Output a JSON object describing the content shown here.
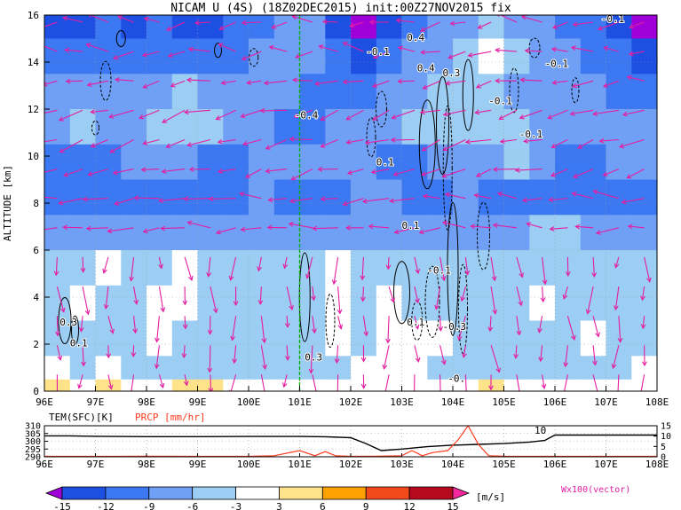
{
  "chart_data": [
    {
      "type": "heatmap",
      "title": "NICAM U (4S) (18Z02DEC2015) init:00Z27NOV2015 fix",
      "ylabel": "ALTITUDE [km]",
      "xlim": [
        96,
        108
      ],
      "ylim": [
        0,
        16
      ],
      "x_ticks": [
        "96E",
        "97E",
        "98E",
        "99E",
        "100E",
        "101E",
        "102E",
        "103E",
        "104E",
        "105E",
        "106E",
        "107E",
        "108E"
      ],
      "y_ticks": [
        "0",
        "2",
        "4",
        "6",
        "8",
        "10",
        "12",
        "14",
        "16"
      ],
      "grid": true,
      "marker_longitude": 101,
      "vector_label": "Wx100(vector)",
      "contour_labels": [
        {
          "text": "-0.1",
          "x": 106.9,
          "y": 15.7
        },
        {
          "text": "-0.1",
          "x": 102.3,
          "y": 14.3
        },
        {
          "text": "0.4",
          "x": 103.1,
          "y": 14.9
        },
        {
          "text": "0.4",
          "x": 103.3,
          "y": 13.6
        },
        {
          "text": "0.3",
          "x": 103.8,
          "y": 13.4
        },
        {
          "text": "-0.1",
          "x": 105.8,
          "y": 13.8
        },
        {
          "text": "-0.1",
          "x": 104.7,
          "y": 12.2
        },
        {
          "text": "-0.4",
          "x": 100.9,
          "y": 11.6
        },
        {
          "text": "-0.1",
          "x": 105.3,
          "y": 10.8
        },
        {
          "text": "0.1",
          "x": 102.5,
          "y": 9.6
        },
        {
          "text": "0.1",
          "x": 103.0,
          "y": 6.9
        },
        {
          "text": "-0.1",
          "x": 103.5,
          "y": 5.0
        },
        {
          "text": "0.1",
          "x": 103.1,
          "y": 2.8
        },
        {
          "text": "-0.3",
          "x": 103.8,
          "y": 2.6
        },
        {
          "text": "0.3",
          "x": 96.3,
          "y": 2.8
        },
        {
          "text": "0.1",
          "x": 96.5,
          "y": 1.9
        },
        {
          "text": "0.3",
          "x": 101.1,
          "y": 1.3
        },
        {
          "text": "-0.",
          "x": 103.9,
          "y": 0.4
        }
      ],
      "bands": [
        {
          "y_top": 16.0,
          "y_bot": 15.0,
          "level": -9,
          "cells": [
            -12,
            -12,
            -9,
            -12,
            -9,
            -12,
            -12,
            -9,
            -9,
            -6,
            -6,
            -12,
            -15,
            -12,
            -9,
            -6,
            -6,
            -3,
            -6,
            -6,
            -9,
            -9,
            -12,
            -15
          ]
        },
        {
          "y_top": 15.0,
          "y_bot": 13.5,
          "level": -9,
          "cells": [
            -9,
            -9,
            -9,
            -9,
            -9,
            -9,
            -9,
            -9,
            -6,
            -6,
            -6,
            -9,
            -12,
            -9,
            -6,
            -6,
            -3,
            3,
            -3,
            -6,
            -6,
            -9,
            -9,
            -12
          ]
        },
        {
          "y_top": 13.5,
          "y_bot": 12.0,
          "level": -6,
          "cells": [
            -6,
            -6,
            -6,
            -6,
            -6,
            -3,
            -6,
            -6,
            -6,
            -6,
            -9,
            -9,
            -9,
            -6,
            -6,
            -3,
            -3,
            -3,
            -6,
            -6,
            -6,
            -6,
            -9,
            -9
          ]
        },
        {
          "y_top": 12.0,
          "y_bot": 10.5,
          "level": -6,
          "cells": [
            -6,
            -3,
            -6,
            -6,
            -3,
            -3,
            -3,
            -6,
            -6,
            -9,
            -9,
            -6,
            -6,
            -6,
            -3,
            -3,
            -3,
            -3,
            -3,
            -6,
            -6,
            -6,
            -6,
            -6
          ]
        },
        {
          "y_top": 10.5,
          "y_bot": 9.0,
          "level": -6,
          "cells": [
            -9,
            -9,
            -9,
            -6,
            -6,
            -6,
            -9,
            -9,
            -6,
            -6,
            -6,
            -6,
            -6,
            -9,
            -9,
            -6,
            -6,
            -6,
            -3,
            -6,
            -9,
            -9,
            -6,
            -6
          ]
        },
        {
          "y_top": 9.0,
          "y_bot": 7.5,
          "level": -9,
          "cells": [
            -9,
            -9,
            -9,
            -9,
            -9,
            -9,
            -9,
            -9,
            -6,
            -9,
            -9,
            -9,
            -6,
            -6,
            -9,
            -9,
            -6,
            -9,
            -9,
            -9,
            -9,
            -9,
            -9,
            -9
          ]
        },
        {
          "y_top": 7.5,
          "y_bot": 6.0,
          "level": -6,
          "cells": [
            -6,
            -6,
            -6,
            -6,
            -6,
            -6,
            -6,
            -6,
            -6,
            -6,
            -6,
            -6,
            -6,
            -6,
            -6,
            -6,
            -6,
            -6,
            -6,
            -3,
            -3,
            -6,
            -6,
            -6
          ]
        },
        {
          "y_top": 6.0,
          "y_bot": 4.5,
          "level": -3,
          "cells": [
            -3,
            -3,
            3,
            -3,
            -3,
            3,
            -3,
            -3,
            -3,
            -3,
            -3,
            3,
            -3,
            -3,
            -3,
            -3,
            -3,
            -3,
            -3,
            -3,
            -3,
            -3,
            -3,
            -3
          ]
        },
        {
          "y_top": 4.5,
          "y_bot": 3.0,
          "level": -3,
          "cells": [
            -3,
            3,
            -3,
            -3,
            3,
            3,
            -3,
            -3,
            -3,
            -3,
            -3,
            3,
            -3,
            3,
            -3,
            -3,
            -3,
            -3,
            -3,
            3,
            -3,
            -3,
            -3,
            -3
          ]
        },
        {
          "y_top": 3.0,
          "y_bot": 1.5,
          "level": -3,
          "cells": [
            -3,
            -3,
            -3,
            -3,
            3,
            -3,
            -3,
            -3,
            -3,
            -3,
            -3,
            3,
            -3,
            3,
            3,
            3,
            -3,
            -3,
            -3,
            -3,
            -3,
            3,
            -3,
            -3
          ]
        },
        {
          "y_top": 1.5,
          "y_bot": 0.5,
          "level": -3,
          "cells": [
            3,
            -3,
            3,
            -3,
            -3,
            -3,
            -3,
            -3,
            -3,
            -3,
            -3,
            -3,
            3,
            3,
            3,
            -3,
            -3,
            -3,
            -3,
            -3,
            -3,
            -3,
            -3,
            3
          ]
        },
        {
          "y_top": 0.5,
          "y_bot": 0.0,
          "level": 3,
          "cells": [
            6,
            3,
            6,
            3,
            3,
            6,
            6,
            3,
            3,
            3,
            3,
            3,
            3,
            3,
            3,
            3,
            3,
            6,
            3,
            3,
            3,
            3,
            3,
            3
          ]
        }
      ]
    },
    {
      "type": "line",
      "label_left": "TEM(SFC)[K]",
      "label_right": "PRCP [mm/hr]",
      "xlim": [
        96,
        108
      ],
      "x_ticks": [
        "96E",
        "97E",
        "98E",
        "99E",
        "100E",
        "101E",
        "102E",
        "103E",
        "104E",
        "105E",
        "106E",
        "107E",
        "108E"
      ],
      "y_left_ticks": [
        "290",
        "295",
        "300",
        "305",
        "310"
      ],
      "y_left_range": [
        290,
        310
      ],
      "y_right_ticks": [
        "0",
        "5",
        "10",
        "15"
      ],
      "y_right_range": [
        0,
        15
      ],
      "series": [
        {
          "name": "TEM(SFC)[K]",
          "color": "#000000",
          "x": [
            96,
            96.5,
            97,
            98,
            99,
            100,
            101,
            101.5,
            102,
            102.3,
            102.6,
            103,
            103.5,
            104,
            104.5,
            105,
            105.5,
            105.8,
            106,
            106.5,
            107,
            108
          ],
          "y": [
            303.5,
            303.5,
            303.2,
            303,
            303,
            303.1,
            303.1,
            302.9,
            302.3,
            298.5,
            294,
            295,
            296.5,
            297.5,
            298,
            298.5,
            299.5,
            300.5,
            304,
            304,
            304,
            304
          ]
        },
        {
          "name": "PRCP [mm/hr]",
          "color": "#ff3b1f",
          "x": [
            96,
            97,
            98,
            99,
            100,
            100.5,
            101,
            101.3,
            101.5,
            101.7,
            102,
            102.5,
            103,
            103.2,
            103.4,
            103.6,
            103.9,
            104.1,
            104.3,
            104.5,
            104.7,
            105,
            106,
            107,
            108
          ],
          "y": [
            0.2,
            0.2,
            0.3,
            0.2,
            0.2,
            0.5,
            3,
            0.5,
            2.5,
            0.5,
            0.2,
            0.3,
            0.5,
            3,
            0.5,
            2,
            3,
            8,
            15,
            6,
            0.5,
            0.3,
            0.2,
            0.2,
            0.2
          ]
        }
      ],
      "annotation": "10"
    },
    {
      "type": "colorbar",
      "unit": "[m/s]",
      "levels": [
        "-15",
        "-12",
        "-9",
        "-6",
        "-3",
        "3",
        "6",
        "9",
        "12",
        "15"
      ],
      "colors": [
        "#a000d8",
        "#1e4fe3",
        "#3c78f2",
        "#6fa0f5",
        "#9ccdf2",
        "#ffffff",
        "#ffe38a",
        "#ffa100",
        "#f24a1a",
        "#b50a1d",
        "#f4289c"
      ]
    }
  ],
  "colors": {
    "vector": "#e41ea2",
    "marker_line": "#00b000",
    "tem": "#000000",
    "prcp": "#ff3b1f"
  }
}
